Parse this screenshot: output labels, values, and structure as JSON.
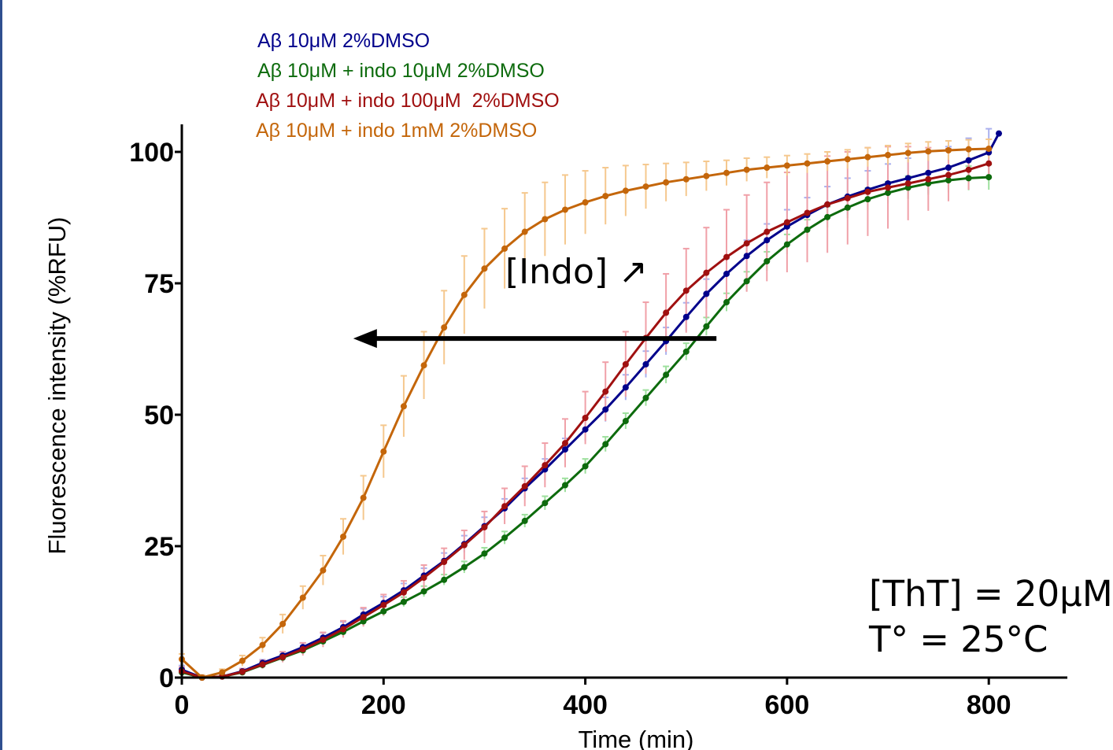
{
  "chart_data": {
    "type": "line",
    "xlabel": "Time (min)",
    "ylabel": "Fluorescence intensity (%RFU)",
    "xlim": [
      0,
      880
    ],
    "ylim": [
      0,
      105
    ],
    "x_ticks": [
      "0",
      "200",
      "400",
      "600",
      "800"
    ],
    "y_ticks": [
      "0",
      "25",
      "50",
      "75",
      "100"
    ],
    "x_tick_values": [
      0,
      200,
      400,
      600,
      800
    ],
    "y_tick_values": [
      0,
      25,
      50,
      75,
      100
    ],
    "grid": false,
    "legend_position": "top-left",
    "series": [
      {
        "name": "Aβ 10μM 2%DMSO",
        "color": "#00008b",
        "error_color": "#aab0ee",
        "x": [
          0,
          20,
          40,
          60,
          80,
          100,
          120,
          140,
          160,
          180,
          200,
          220,
          240,
          260,
          280,
          300,
          320,
          340,
          360,
          380,
          400,
          420,
          440,
          460,
          480,
          500,
          520,
          540,
          560,
          580,
          600,
          620,
          640,
          660,
          680,
          700,
          720,
          740,
          760,
          780,
          800,
          810
        ],
        "y": [
          1.5,
          0,
          0.2,
          1.2,
          2.8,
          4.2,
          5.8,
          7.6,
          9.6,
          12,
          14.2,
          16.6,
          19.4,
          22.2,
          25.4,
          28.8,
          32.2,
          36,
          39.6,
          43.4,
          47.2,
          51,
          55.2,
          59.6,
          64,
          68.6,
          73,
          76.8,
          80.2,
          83.2,
          85.8,
          88,
          90,
          91.5,
          92.8,
          94,
          95,
          96,
          97,
          98.4,
          99.9,
          103.5
        ],
        "error": [
          0.8,
          0.4,
          0.4,
          0.5,
          0.6,
          0.7,
          0.8,
          0.9,
          1,
          1.1,
          1.2,
          1.3,
          1.4,
          1.5,
          1.6,
          1.7,
          1.8,
          1.9,
          2,
          2.1,
          2.2,
          2.3,
          2.4,
          2.5,
          2.6,
          2.7,
          2.8,
          2.9,
          3,
          3.1,
          3.2,
          3.3,
          3.4,
          3.5,
          3.6,
          3.7,
          3.8,
          3.9,
          4,
          4.2,
          4.5,
          0
        ]
      },
      {
        "name": "Aβ 10μM + indo 10μM 2%DMSO",
        "color": "#0d6b0d",
        "error_color": "#9ee09e",
        "x": [
          0,
          20,
          40,
          60,
          80,
          100,
          120,
          140,
          160,
          180,
          200,
          220,
          240,
          260,
          280,
          300,
          320,
          340,
          360,
          380,
          400,
          420,
          440,
          460,
          480,
          500,
          520,
          540,
          560,
          580,
          600,
          620,
          640,
          660,
          680,
          700,
          720,
          740,
          760,
          780,
          800
        ],
        "y": [
          1,
          0,
          0.2,
          1,
          2.4,
          3.8,
          5.2,
          6.9,
          8.7,
          10.7,
          12.6,
          14.4,
          16.4,
          18.6,
          21,
          23.6,
          26.6,
          29.8,
          33.2,
          36.6,
          40.2,
          44.4,
          48.8,
          53.2,
          57.6,
          62,
          66.8,
          71.4,
          75.4,
          79.2,
          82.4,
          85.2,
          87.6,
          89.4,
          91,
          92.2,
          93.2,
          94,
          94.6,
          95,
          95.2
        ],
        "error": [
          0.6,
          0.3,
          0.3,
          0.4,
          0.5,
          0.6,
          0.7,
          0.7,
          0.8,
          0.8,
          0.9,
          0.9,
          1,
          1,
          1.1,
          1.1,
          1.2,
          1.2,
          1.3,
          1.3,
          1.4,
          1.4,
          1.5,
          1.5,
          1.6,
          1.6,
          1.7,
          1.7,
          1.8,
          1.8,
          1.9,
          1.9,
          2,
          2,
          2.1,
          2.1,
          2.2,
          2.2,
          2.3,
          2.3,
          2.4
        ]
      },
      {
        "name": "Aβ 10μM + indo 100μM  2%DMSO",
        "color": "#a01010",
        "error_color": "#f0a0a8",
        "x": [
          0,
          20,
          40,
          60,
          80,
          100,
          120,
          140,
          160,
          180,
          200,
          220,
          240,
          260,
          280,
          300,
          320,
          340,
          360,
          380,
          400,
          420,
          440,
          460,
          480,
          500,
          520,
          540,
          560,
          580,
          600,
          620,
          640,
          660,
          680,
          700,
          720,
          740,
          760,
          780,
          800
        ],
        "y": [
          1.2,
          0,
          0.2,
          1.1,
          2.5,
          3.9,
          5.4,
          7.2,
          9.2,
          11.5,
          13.8,
          16.2,
          19,
          22,
          25.2,
          28.6,
          32.6,
          36.4,
          40.4,
          44.6,
          49.4,
          54.4,
          59.6,
          64.6,
          69.4,
          73.6,
          77,
          80,
          82.6,
          84.8,
          86.6,
          88.4,
          90,
          91.2,
          92.4,
          93.2,
          94,
          94.8,
          95.6,
          96.6,
          97.8
        ],
        "error": [
          0.8,
          0.4,
          0.4,
          0.6,
          0.8,
          1,
          1.2,
          1.4,
          1.6,
          1.8,
          2,
          2.2,
          2.4,
          2.6,
          2.8,
          3,
          3.4,
          3.8,
          4.2,
          4.6,
          5,
          5.6,
          6.2,
          6.8,
          7.4,
          8,
          8.6,
          9,
          9.2,
          9.4,
          9.5,
          9.4,
          9.2,
          8.8,
          8.4,
          7.8,
          7,
          6,
          5,
          3.8,
          2.6
        ]
      },
      {
        "name": "Aβ 10μM + indo 1mM 2%DMSO",
        "color": "#c4660a",
        "error_color": "#f5c88e",
        "x": [
          0,
          20,
          40,
          60,
          80,
          100,
          120,
          140,
          160,
          180,
          200,
          220,
          240,
          260,
          280,
          300,
          320,
          340,
          360,
          380,
          400,
          420,
          440,
          460,
          480,
          500,
          520,
          540,
          560,
          580,
          600,
          620,
          640,
          660,
          680,
          700,
          720,
          740,
          760,
          780,
          800
        ],
        "y": [
          3.5,
          0,
          1,
          3.2,
          6.2,
          10.2,
          15.2,
          20.4,
          26.8,
          34.2,
          43,
          51.6,
          59.4,
          66.6,
          72.8,
          77.8,
          81.6,
          84.8,
          87.2,
          89,
          90.4,
          91.6,
          92.6,
          93.4,
          94.2,
          94.8,
          95.4,
          96,
          96.6,
          97,
          97.4,
          97.8,
          98.2,
          98.6,
          99,
          99.4,
          99.8,
          100.1,
          100.3,
          100.5,
          100.6
        ],
        "error": [
          1,
          0.5,
          0.6,
          1,
          1.4,
          1.8,
          2.2,
          2.8,
          3.4,
          4.2,
          5,
          5.8,
          6.4,
          7,
          7.4,
          7.6,
          7.6,
          7.4,
          7,
          6.6,
          6,
          5.4,
          4.8,
          4.2,
          3.6,
          3.2,
          2.8,
          2.4,
          2.2,
          2,
          1.9,
          1.8,
          1.8,
          1.8,
          1.8,
          1.8,
          1.8,
          1.8,
          1.8,
          1.8,
          1.8
        ]
      }
    ],
    "annotations": {
      "indo_label": "[Indo] ↗",
      "tht_line": "[ThT] = 20μM",
      "temp_line": "T° = 25°C"
    },
    "arrow": {
      "from_x": 530,
      "to_x": 170,
      "y": 64.5
    }
  }
}
